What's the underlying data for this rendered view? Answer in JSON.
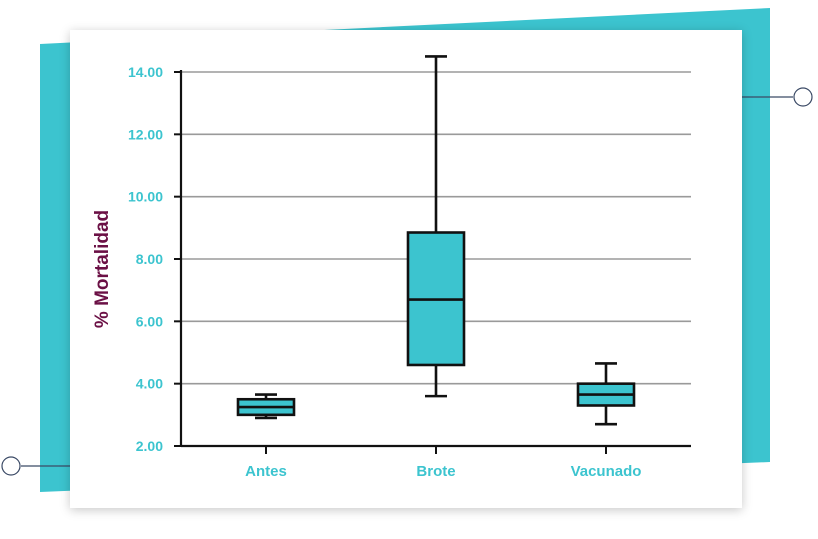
{
  "colors": {
    "accent": "#3cc4cf",
    "ylabel": "#6b1045",
    "grid": "#9a9a9a",
    "axis": "#111111",
    "box_stroke": "#111111"
  },
  "chart_data": {
    "type": "boxplot",
    "ylabel": "% Mortalidad",
    "xlabel": "",
    "title": "",
    "ylim": [
      2.0,
      14.0
    ],
    "yticks": [
      "2.00",
      "4.00",
      "6.00",
      "8.00",
      "10.00",
      "12.00",
      "14.00"
    ],
    "ytick_values": [
      2,
      4,
      6,
      8,
      10,
      12,
      14
    ],
    "grid": true,
    "categories": [
      "Antes",
      "Brote",
      "Vacunado"
    ],
    "boxes": [
      {
        "category": "Antes",
        "min": 2.9,
        "q1": 3.0,
        "median": 3.25,
        "q3": 3.5,
        "max": 3.65
      },
      {
        "category": "Brote",
        "min": 3.6,
        "q1": 4.6,
        "median": 6.7,
        "q3": 8.85,
        "max": 14.5
      },
      {
        "category": "Vacunado",
        "min": 2.7,
        "q1": 3.3,
        "median": 3.65,
        "q3": 4.0,
        "max": 4.65
      }
    ]
  }
}
